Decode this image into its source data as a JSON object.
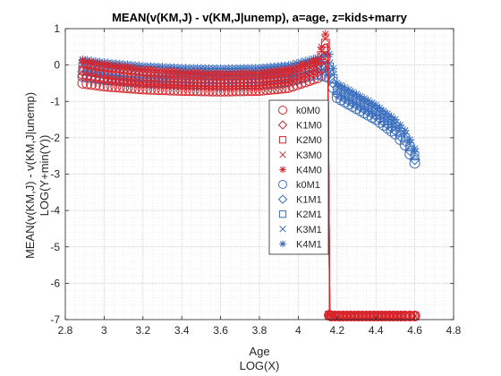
{
  "chart_data": {
    "type": "scatter",
    "title": "MEAN(v(KM,J) - v(KM,J|unemp), a=age, z=kids+marry",
    "xlabel": "Age",
    "xlabel2": "LOG(X)",
    "ylabel": "MEAN(v(KM,J) - v(KM,J|unemp)",
    "ylabel2": "LOG(Y+min(Y))",
    "xlim": [
      2.8,
      4.8
    ],
    "ylim": [
      -7,
      1
    ],
    "xticks": [
      2.8,
      3,
      3.2,
      3.4,
      3.6,
      3.8,
      4,
      4.2,
      4.4,
      4.6,
      4.8
    ],
    "yticks": [
      -7,
      -6,
      -5,
      -4,
      -3,
      -2,
      -1,
      0,
      1
    ],
    "grid": "major+minor dotted",
    "legend_placement": "center-right",
    "colors": {
      "red": "#d7262d",
      "blue": "#3a6ebe"
    },
    "series": [
      {
        "name": "k0M0",
        "marker": "circle",
        "color": "red",
        "x": [
          2.89,
          3.0,
          3.2,
          3.4,
          3.6,
          3.8,
          3.95,
          4.1,
          4.14,
          4.16,
          4.17,
          4.25,
          4.35,
          4.45,
          4.55,
          4.6
        ],
        "y": [
          -0.5,
          -0.58,
          -0.66,
          -0.7,
          -0.72,
          -0.7,
          -0.62,
          -0.35,
          0.2,
          -6.88,
          -6.9,
          -6.9,
          -6.9,
          -6.9,
          -6.9,
          -6.9
        ]
      },
      {
        "name": "K1M0",
        "marker": "diamond",
        "color": "red",
        "x": [
          2.89,
          3.0,
          3.2,
          3.4,
          3.6,
          3.8,
          3.95,
          4.1,
          4.14,
          4.16,
          4.17,
          4.25,
          4.35,
          4.45,
          4.55,
          4.6
        ],
        "y": [
          -0.3,
          -0.4,
          -0.5,
          -0.55,
          -0.58,
          -0.56,
          -0.48,
          -0.2,
          0.45,
          -6.88,
          -6.9,
          -6.9,
          -6.9,
          -6.9,
          -6.9,
          -6.9
        ]
      },
      {
        "name": "K2M0",
        "marker": "square",
        "color": "red",
        "x": [
          2.89,
          3.0,
          3.2,
          3.4,
          3.6,
          3.8,
          3.95,
          4.1,
          4.14,
          4.16,
          4.17,
          4.25,
          4.35,
          4.45,
          4.55,
          4.6
        ],
        "y": [
          -0.15,
          -0.25,
          -0.38,
          -0.44,
          -0.47,
          -0.45,
          -0.36,
          -0.08,
          0.6,
          -6.88,
          -6.9,
          -6.9,
          -6.9,
          -6.9,
          -6.9,
          -6.9
        ]
      },
      {
        "name": "K3M0",
        "marker": "x",
        "color": "red",
        "x": [
          2.89,
          3.0,
          3.2,
          3.4,
          3.6,
          3.8,
          3.95,
          4.1,
          4.14,
          4.16,
          4.17,
          4.25,
          4.35,
          4.45,
          4.55,
          4.6
        ],
        "y": [
          0.0,
          -0.1,
          -0.24,
          -0.32,
          -0.35,
          -0.33,
          -0.24,
          0.05,
          0.72,
          -6.88,
          -6.9,
          -6.9,
          -6.9,
          -6.9,
          -6.9,
          -6.9
        ]
      },
      {
        "name": "K4M0",
        "marker": "star",
        "color": "red",
        "x": [
          2.89,
          3.0,
          3.2,
          3.4,
          3.6,
          3.8,
          3.95,
          4.1,
          4.14,
          4.16,
          4.17,
          4.25,
          4.35,
          4.45,
          4.55,
          4.6
        ],
        "y": [
          0.12,
          0.02,
          -0.12,
          -0.2,
          -0.24,
          -0.22,
          -0.13,
          0.15,
          0.85,
          -6.88,
          -6.9,
          -6.9,
          -6.9,
          -6.9,
          -6.9,
          -6.9
        ]
      },
      {
        "name": "k0M1",
        "marker": "circle",
        "color": "blue",
        "x": [
          2.89,
          3.0,
          3.2,
          3.4,
          3.6,
          3.8,
          3.95,
          4.1,
          4.16,
          4.2,
          4.3,
          4.4,
          4.5,
          4.55,
          4.6
        ],
        "y": [
          -0.32,
          -0.4,
          -0.48,
          -0.52,
          -0.54,
          -0.52,
          -0.45,
          -0.25,
          -0.35,
          -0.9,
          -1.2,
          -1.5,
          -1.9,
          -2.2,
          -2.7
        ]
      },
      {
        "name": "K1M1",
        "marker": "diamond",
        "color": "blue",
        "x": [
          2.89,
          3.0,
          3.2,
          3.4,
          3.6,
          3.8,
          3.95,
          4.1,
          4.16,
          4.2,
          4.3,
          4.4,
          4.5,
          4.55,
          4.6
        ],
        "y": [
          -0.18,
          -0.26,
          -0.36,
          -0.4,
          -0.42,
          -0.4,
          -0.33,
          -0.12,
          -0.2,
          -0.8,
          -1.1,
          -1.4,
          -1.8,
          -2.1,
          -2.6
        ]
      },
      {
        "name": "K2M1",
        "marker": "square",
        "color": "blue",
        "x": [
          2.89,
          3.0,
          3.2,
          3.4,
          3.6,
          3.8,
          3.95,
          4.1,
          4.16,
          4.2,
          4.3,
          4.4,
          4.5,
          4.55,
          4.6
        ],
        "y": [
          -0.05,
          -0.13,
          -0.24,
          -0.29,
          -0.31,
          -0.29,
          -0.22,
          0.0,
          -0.05,
          -0.7,
          -1.0,
          -1.3,
          -1.7,
          -2.0,
          -2.5
        ]
      },
      {
        "name": "K3M1",
        "marker": "x",
        "color": "blue",
        "x": [
          2.89,
          3.0,
          3.2,
          3.4,
          3.6,
          3.8,
          3.95,
          4.1,
          4.16,
          4.2,
          4.3,
          4.4,
          4.5,
          4.55,
          4.6
        ],
        "y": [
          0.05,
          -0.03,
          -0.13,
          -0.18,
          -0.2,
          -0.18,
          -0.11,
          0.1,
          0.05,
          -0.6,
          -0.9,
          -1.2,
          -1.6,
          -1.9,
          -2.4
        ]
      },
      {
        "name": "K4M1",
        "marker": "star",
        "color": "blue",
        "x": [
          2.89,
          3.0,
          3.2,
          3.4,
          3.6,
          3.8,
          3.95,
          4.1,
          4.16,
          4.2,
          4.3,
          4.4,
          4.5,
          4.55,
          4.6
        ],
        "y": [
          0.15,
          0.07,
          -0.03,
          -0.08,
          -0.1,
          -0.08,
          -0.01,
          0.2,
          0.3,
          -0.5,
          -0.8,
          -1.1,
          -1.5,
          -1.8,
          -2.3
        ]
      }
    ]
  }
}
